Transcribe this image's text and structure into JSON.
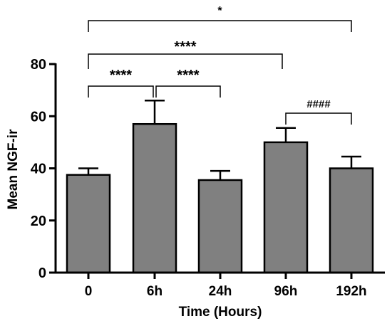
{
  "chart_data": {
    "type": "bar",
    "categories": [
      "0",
      "6h",
      "24h",
      "96h",
      "192h"
    ],
    "values": [
      37.5,
      57,
      35.5,
      50,
      40
    ],
    "errors": [
      2.5,
      9,
      3.5,
      5.5,
      4.5
    ],
    "xlabel": "Time (Hours)",
    "ylabel": "Mean NGF-ir",
    "ylim": [
      0,
      80
    ],
    "yticks": [
      0,
      20,
      40,
      60,
      80
    ],
    "bar_color": "#808080",
    "grid": false,
    "significance": [
      {
        "from": 0,
        "to": 1,
        "label": "****"
      },
      {
        "from": 1,
        "to": 2,
        "label": "****"
      },
      {
        "from": 3,
        "to": 4,
        "label": "####"
      },
      {
        "from": 0,
        "to": 3,
        "label": "****"
      },
      {
        "from": 0,
        "to": 4,
        "label": "*"
      }
    ]
  }
}
